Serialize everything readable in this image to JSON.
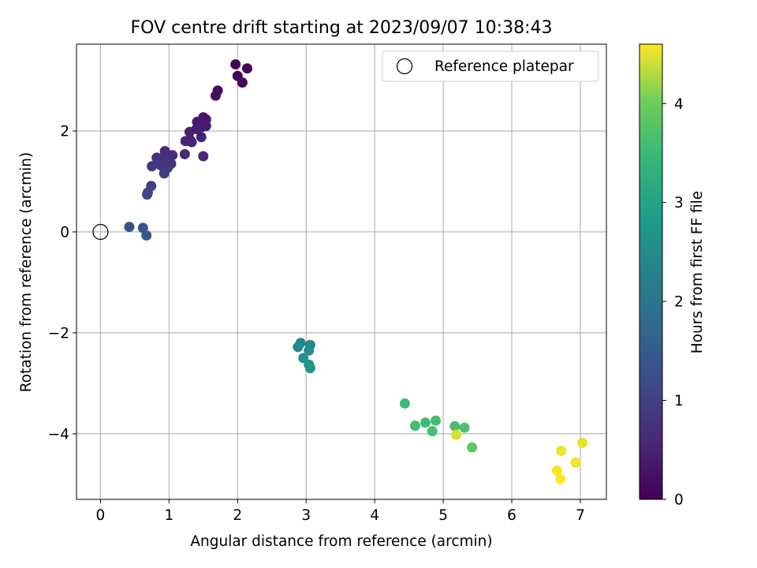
{
  "chart_data": {
    "type": "scatter",
    "title": "FOV centre drift starting at 2023/09/07 10:38:43",
    "xlabel": "Angular distance from reference (arcmin)",
    "ylabel": "Rotation from reference (arcmin)",
    "xlim": [
      -0.35,
      7.38
    ],
    "ylim": [
      -5.3,
      3.72
    ],
    "xticks": [
      0,
      1,
      2,
      3,
      4,
      5,
      6,
      7
    ],
    "yticks": [
      -4,
      -2,
      0,
      2
    ],
    "grid": true,
    "legend": {
      "location": "top-right",
      "entries": [
        "Reference platepar"
      ]
    },
    "reference_point": {
      "x": 0,
      "y": 0,
      "label": "Reference platepar"
    },
    "colorbar": {
      "label": "Hours from first FF file",
      "colormap": "viridis",
      "range": [
        0,
        4.6
      ],
      "ticks": [
        0,
        1,
        2,
        3,
        4
      ]
    },
    "series": [
      {
        "marker": "filled-circle",
        "points": [
          {
            "x": 1.97,
            "y": 3.32,
            "c": 0.0
          },
          {
            "x": 2.14,
            "y": 3.24,
            "c": 0.05
          },
          {
            "x": 2.0,
            "y": 3.09,
            "c": 0.08
          },
          {
            "x": 2.07,
            "y": 2.96,
            "c": 0.12
          },
          {
            "x": 1.71,
            "y": 2.8,
            "c": 0.18
          },
          {
            "x": 1.68,
            "y": 2.7,
            "c": 0.22
          },
          {
            "x": 1.5,
            "y": 2.27,
            "c": 0.3
          },
          {
            "x": 1.54,
            "y": 2.23,
            "c": 0.32
          },
          {
            "x": 1.41,
            "y": 2.18,
            "c": 0.35
          },
          {
            "x": 1.47,
            "y": 2.14,
            "c": 0.37
          },
          {
            "x": 1.54,
            "y": 2.1,
            "c": 0.39
          },
          {
            "x": 1.48,
            "y": 2.08,
            "c": 0.4
          },
          {
            "x": 1.4,
            "y": 2.04,
            "c": 0.42
          },
          {
            "x": 1.3,
            "y": 1.98,
            "c": 0.45
          },
          {
            "x": 1.47,
            "y": 1.88,
            "c": 0.47
          },
          {
            "x": 1.31,
            "y": 1.82,
            "c": 0.5
          },
          {
            "x": 1.24,
            "y": 1.8,
            "c": 0.52
          },
          {
            "x": 1.33,
            "y": 1.78,
            "c": 0.54
          },
          {
            "x": 0.94,
            "y": 1.6,
            "c": 0.6
          },
          {
            "x": 1.23,
            "y": 1.54,
            "c": 0.62
          },
          {
            "x": 1.05,
            "y": 1.52,
            "c": 0.64
          },
          {
            "x": 0.94,
            "y": 1.52,
            "c": 0.65
          },
          {
            "x": 1.5,
            "y": 1.5,
            "c": 0.56
          },
          {
            "x": 0.82,
            "y": 1.47,
            "c": 0.68
          },
          {
            "x": 1.0,
            "y": 1.46,
            "c": 0.7
          },
          {
            "x": 0.88,
            "y": 1.44,
            "c": 0.72
          },
          {
            "x": 0.95,
            "y": 1.4,
            "c": 0.74
          },
          {
            "x": 0.83,
            "y": 1.38,
            "c": 0.76
          },
          {
            "x": 1.03,
            "y": 1.35,
            "c": 0.78
          },
          {
            "x": 0.88,
            "y": 1.32,
            "c": 0.8
          },
          {
            "x": 0.75,
            "y": 1.3,
            "c": 0.83
          },
          {
            "x": 0.98,
            "y": 1.27,
            "c": 0.85
          },
          {
            "x": 0.93,
            "y": 1.16,
            "c": 0.9
          },
          {
            "x": 0.74,
            "y": 0.91,
            "c": 0.97
          },
          {
            "x": 0.69,
            "y": 0.78,
            "c": 1.05
          },
          {
            "x": 0.68,
            "y": 0.74,
            "c": 1.1
          },
          {
            "x": 0.42,
            "y": 0.1,
            "c": 1.32
          },
          {
            "x": 0.62,
            "y": 0.08,
            "c": 1.38
          },
          {
            "x": 0.67,
            "y": -0.07,
            "c": 1.42
          },
          {
            "x": 2.92,
            "y": -2.2,
            "c": 2.4
          },
          {
            "x": 3.06,
            "y": -2.24,
            "c": 2.45
          },
          {
            "x": 2.88,
            "y": -2.28,
            "c": 2.5
          },
          {
            "x": 3.04,
            "y": -2.35,
            "c": 2.55
          },
          {
            "x": 2.96,
            "y": -2.5,
            "c": 2.6
          },
          {
            "x": 3.04,
            "y": -2.63,
            "c": 2.65
          },
          {
            "x": 3.06,
            "y": -2.7,
            "c": 2.7
          },
          {
            "x": 4.44,
            "y": -3.4,
            "c": 3.5
          },
          {
            "x": 4.74,
            "y": -3.78,
            "c": 3.55
          },
          {
            "x": 4.89,
            "y": -3.74,
            "c": 3.6
          },
          {
            "x": 4.59,
            "y": -3.84,
            "c": 3.58
          },
          {
            "x": 5.17,
            "y": -3.85,
            "c": 3.65
          },
          {
            "x": 5.31,
            "y": -3.88,
            "c": 3.7
          },
          {
            "x": 4.84,
            "y": -3.95,
            "c": 3.62
          },
          {
            "x": 5.42,
            "y": -4.27,
            "c": 3.85
          },
          {
            "x": 5.19,
            "y": -4.02,
            "c": 4.45
          },
          {
            "x": 7.03,
            "y": -4.18,
            "c": 4.5
          },
          {
            "x": 6.72,
            "y": -4.34,
            "c": 4.52
          },
          {
            "x": 6.93,
            "y": -4.57,
            "c": 4.55
          },
          {
            "x": 6.66,
            "y": -4.73,
            "c": 4.57
          },
          {
            "x": 6.71,
            "y": -4.9,
            "c": 4.6
          }
        ]
      }
    ]
  }
}
